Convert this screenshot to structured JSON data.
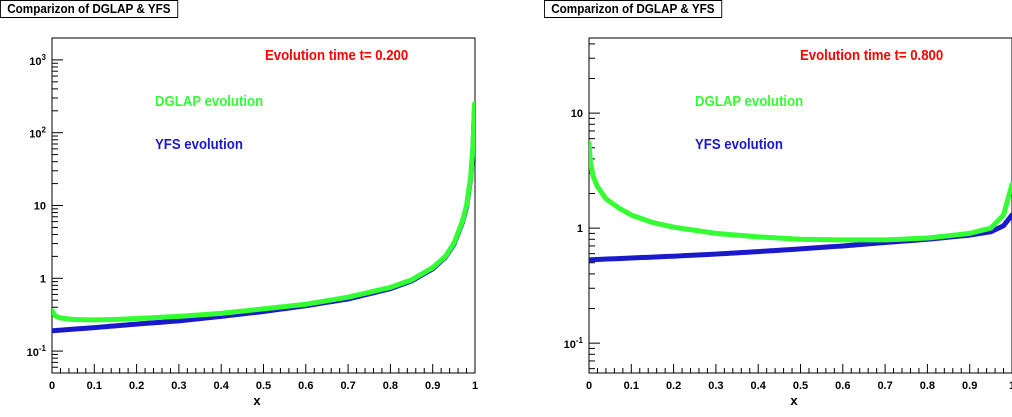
{
  "chart_data": [
    {
      "type": "line",
      "title": "Comparizon of DGLAP & YFS",
      "xlabel": "x",
      "ylabel": "",
      "xlim": [
        0,
        1
      ],
      "ylim": [
        0.05,
        2000
      ],
      "log_y": true,
      "grid": false,
      "x_ticks": [
        "0",
        "0.1",
        "0.2",
        "0.3",
        "0.4",
        "0.5",
        "0.6",
        "0.7",
        "0.8",
        "0.9",
        "1"
      ],
      "y_ticks": [
        {
          "value": 0.1,
          "base": "10",
          "exp": "-1"
        },
        {
          "value": 1,
          "label": "1"
        },
        {
          "value": 10,
          "label": "10"
        },
        {
          "value": 100,
          "base": "10",
          "exp": "2"
        },
        {
          "value": 1000,
          "base": "10",
          "exp": "3"
        }
      ],
      "annotations": [
        {
          "text": "Evolution time t=  0.200",
          "color": "#ff0000"
        },
        {
          "text": "DGLAP evolution",
          "color": "#33ff33"
        },
        {
          "text": "YFS evolution",
          "color": "#1a1acc"
        }
      ],
      "series": [
        {
          "name": "DGLAP evolution",
          "color": "#33ff33",
          "points": [
            [
              0.0,
              0.36
            ],
            [
              0.005,
              0.32
            ],
            [
              0.01,
              0.3
            ],
            [
              0.02,
              0.285
            ],
            [
              0.05,
              0.272
            ],
            [
              0.1,
              0.268
            ],
            [
              0.15,
              0.272
            ],
            [
              0.2,
              0.28
            ],
            [
              0.3,
              0.3
            ],
            [
              0.4,
              0.33
            ],
            [
              0.5,
              0.38
            ],
            [
              0.6,
              0.44
            ],
            [
              0.7,
              0.55
            ],
            [
              0.8,
              0.75
            ],
            [
              0.85,
              0.95
            ],
            [
              0.9,
              1.4
            ],
            [
              0.93,
              2.0
            ],
            [
              0.95,
              3.0
            ],
            [
              0.97,
              6.0
            ],
            [
              0.98,
              10.0
            ],
            [
              0.99,
              25.0
            ],
            [
              0.995,
              60.0
            ],
            [
              0.999,
              250.0
            ]
          ]
        },
        {
          "name": "YFS evolution",
          "color": "#1a1acc",
          "points": [
            [
              0.0,
              0.19
            ],
            [
              0.05,
              0.2
            ],
            [
              0.1,
              0.21
            ],
            [
              0.2,
              0.235
            ],
            [
              0.3,
              0.26
            ],
            [
              0.4,
              0.3
            ],
            [
              0.5,
              0.35
            ],
            [
              0.6,
              0.42
            ],
            [
              0.7,
              0.52
            ],
            [
              0.8,
              0.72
            ],
            [
              0.85,
              0.92
            ],
            [
              0.9,
              1.35
            ],
            [
              0.93,
              1.95
            ],
            [
              0.95,
              2.9
            ],
            [
              0.97,
              5.8
            ],
            [
              0.98,
              9.5
            ],
            [
              0.99,
              24.0
            ],
            [
              0.995,
              58.0
            ],
            [
              0.999,
              240.0
            ]
          ]
        }
      ]
    },
    {
      "type": "line",
      "title": "Comparizon of DGLAP & YFS",
      "xlabel": "x",
      "ylabel": "",
      "xlim": [
        0,
        1
      ],
      "ylim": [
        0.055,
        45
      ],
      "log_y": true,
      "grid": false,
      "x_ticks": [
        "0",
        "0.1",
        "0.2",
        "0.3",
        "0.4",
        "0.5",
        "0.6",
        "0.7",
        "0.8",
        "0.9",
        "1"
      ],
      "y_ticks": [
        {
          "value": 0.1,
          "base": "10",
          "exp": "-1"
        },
        {
          "value": 1,
          "label": "1"
        },
        {
          "value": 10,
          "label": "10"
        }
      ],
      "annotations": [
        {
          "text": "Evolution time t=  0.800",
          "color": "#ff0000"
        },
        {
          "text": "DGLAP evolution",
          "color": "#33ff33"
        },
        {
          "text": "YFS evolution",
          "color": "#1a1acc"
        }
      ],
      "series": [
        {
          "name": "DGLAP evolution",
          "color": "#33ff33",
          "points": [
            [
              0.0,
              5.5
            ],
            [
              0.003,
              3.8
            ],
            [
              0.01,
              2.8
            ],
            [
              0.02,
              2.3
            ],
            [
              0.04,
              1.8
            ],
            [
              0.07,
              1.5
            ],
            [
              0.1,
              1.3
            ],
            [
              0.15,
              1.12
            ],
            [
              0.2,
              1.02
            ],
            [
              0.3,
              0.9
            ],
            [
              0.4,
              0.84
            ],
            [
              0.5,
              0.8
            ],
            [
              0.6,
              0.79
            ],
            [
              0.7,
              0.79
            ],
            [
              0.8,
              0.82
            ],
            [
              0.9,
              0.9
            ],
            [
              0.95,
              1.0
            ],
            [
              0.98,
              1.3
            ],
            [
              1.0,
              2.4
            ]
          ]
        },
        {
          "name": "YFS evolution",
          "color": "#1a1acc",
          "points": [
            [
              0.0,
              0.53
            ],
            [
              0.1,
              0.55
            ],
            [
              0.2,
              0.57
            ],
            [
              0.3,
              0.595
            ],
            [
              0.4,
              0.625
            ],
            [
              0.5,
              0.66
            ],
            [
              0.6,
              0.7
            ],
            [
              0.7,
              0.75
            ],
            [
              0.8,
              0.8
            ],
            [
              0.9,
              0.87
            ],
            [
              0.95,
              0.93
            ],
            [
              0.98,
              1.05
            ],
            [
              1.0,
              1.3
            ]
          ]
        }
      ]
    }
  ]
}
